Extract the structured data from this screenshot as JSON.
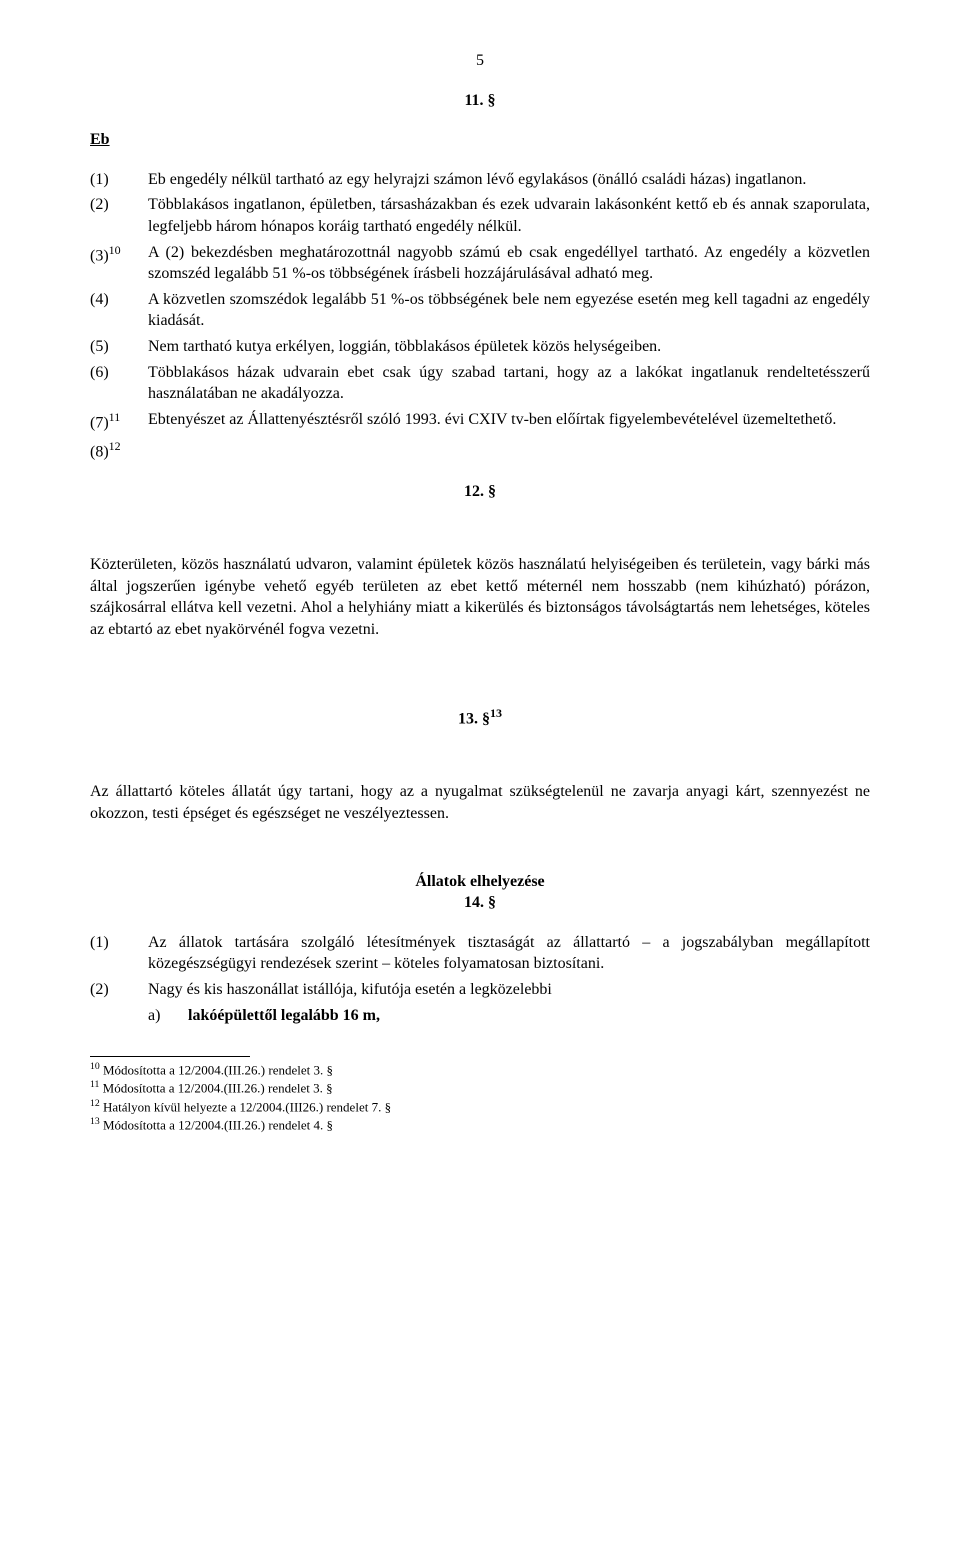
{
  "page_number": "5",
  "s11": {
    "num": "11. §",
    "title": "Eb",
    "items": [
      {
        "label": "(1)",
        "text": "Eb engedély nélkül tartható az egy helyrajzi számon lévő egylakásos (önálló családi házas) ingatlanon."
      },
      {
        "label": "(2)",
        "text": "Többlakásos ingatlanon, épületben, társasházakban és ezek udvarain lakásonként kettő eb és annak szaporulata, legfeljebb három hónapos koráig tartható engedély nélkül."
      },
      {
        "label": "(3)",
        "sup": "10",
        "text": "A (2) bekezdésben meghatározottnál nagyobb számú eb csak engedéllyel tartható. Az engedély a közvetlen szomszéd legalább 51 %-os többségének írásbeli hozzájárulásával adható meg."
      },
      {
        "label": "(4)",
        "text": "A közvetlen szomszédok legalább 51 %-os többségének bele nem egyezése esetén meg kell tagadni az engedély kiadását."
      },
      {
        "label": "(5)",
        "text": "Nem tartható kutya erkélyen, loggián, többlakásos épületek közös helységeiben."
      },
      {
        "label": "(6)",
        "text": "Többlakásos házak udvarain ebet csak úgy szabad tartani, hogy az a lakókat ingatlanuk rendeltetésszerű használatában ne akadályozza."
      },
      {
        "label": "(7)",
        "sup": "11",
        "text": "Ebtenyészet az Állattenyésztésről szóló 1993. évi CXIV tv-ben előírtak figyelembevételével üzemeltethető."
      },
      {
        "label": "(8)",
        "sup": "12",
        "text": ""
      }
    ]
  },
  "s12": {
    "num": "12. §",
    "body": "Közterületen, közös használatú udvaron, valamint épületek közös használatú helyiségeiben és területein, vagy bárki más által jogszerűen igénybe vehető egyéb területen az ebet kettő méternél nem hosszabb (nem kihúzható) pórázon, szájkosárral ellátva kell vezetni. Ahol a helyhiány miatt a kikerülés és biztonságos távolságtartás nem lehetséges, köteles az ebtartó az ebet nyakörvénél fogva vezetni."
  },
  "s13": {
    "num": "13. §",
    "sup": "13",
    "body": "Az állattartó köteles állatát úgy tartani, hogy az a nyugalmat szükségtelenül ne zavarja anyagi kárt, szennyezést ne okozzon, testi épséget és egészséget ne veszélyeztessen."
  },
  "s14": {
    "heading": "Állatok elhelyezése",
    "num": "14. §",
    "items": [
      {
        "label": "(1)",
        "text": "Az állatok tartására szolgáló létesítmények tisztaságát az állattartó – a jogszabályban megállapított közegészségügyi rendezések szerint – köteles folyamatosan biztosítani."
      },
      {
        "label": "(2)",
        "text": "Nagy és kis haszonállat istállója, kifutója esetén a legközelebbi"
      }
    ],
    "subitem": {
      "label": "a)",
      "text": "lakóépülettől legalább 16 m,"
    }
  },
  "footnotes": [
    {
      "sup": "10",
      "text": " Módosította a 12/2004.(III.26.) rendelet 3. §"
    },
    {
      "sup": "11",
      "text": " Módosította a 12/2004.(III.26.) rendelet 3. §"
    },
    {
      "sup": "12",
      "text": " Hatályon kívül helyezte a 12/2004.(III26.) rendelet 7. §"
    },
    {
      "sup": "13",
      "text": " Módosította a 12/2004.(III.26.) rendelet 4. §"
    }
  ]
}
